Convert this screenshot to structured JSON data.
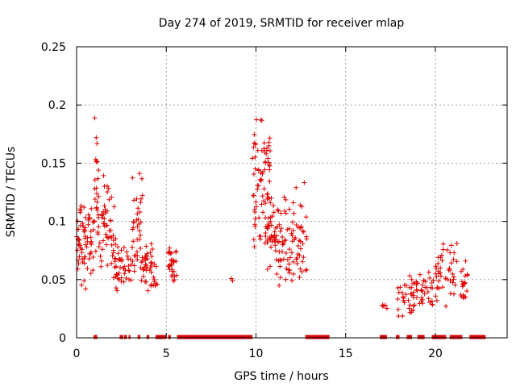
{
  "chart_data": {
    "type": "scatter",
    "title": "Day 274 of 2019, SRMTID for receiver mlap",
    "xlabel": "GPS time / hours",
    "ylabel": "SRMTID / TECUs",
    "xlim": [
      0,
      24
    ],
    "ylim": [
      0,
      0.25
    ],
    "x_ticks": [
      "0",
      "5",
      "10",
      "15",
      "20"
    ],
    "x_tick_values": [
      0,
      5,
      10,
      15,
      20
    ],
    "y_ticks": [
      "0",
      "0.05",
      "0.1",
      "0.15",
      "0.2",
      "0.25"
    ],
    "y_tick_values": [
      0,
      0.05,
      0.1,
      0.15,
      0.2,
      0.25
    ],
    "grid": true,
    "marker": "+",
    "color": "#e00000",
    "clusters": [
      {
        "x_range": [
          0.0,
          1.0
        ],
        "y_range": [
          0.035,
          0.12
        ],
        "count": 70
      },
      {
        "x_range": [
          1.0,
          2.1
        ],
        "y_range": [
          0.04,
          0.15
        ],
        "count": 60
      },
      {
        "x_range": [
          1.0,
          1.2
        ],
        "y_range": [
          0.1,
          0.205
        ],
        "count": 14
      },
      {
        "x_range": [
          2.1,
          3.1
        ],
        "y_range": [
          0.035,
          0.09
        ],
        "count": 45
      },
      {
        "x_range": [
          3.1,
          3.7
        ],
        "y_range": [
          0.04,
          0.15
        ],
        "count": 40
      },
      {
        "x_range": [
          3.7,
          4.5
        ],
        "y_range": [
          0.035,
          0.085
        ],
        "count": 40
      },
      {
        "x_range": [
          5.1,
          5.6
        ],
        "y_range": [
          0.045,
          0.08
        ],
        "count": 30
      },
      {
        "x_range": [
          8.6,
          8.8
        ],
        "y_range": [
          0.04,
          0.055
        ],
        "count": 2
      },
      {
        "x_range": [
          9.8,
          10.8
        ],
        "y_range": [
          0.07,
          0.195
        ],
        "count": 80
      },
      {
        "x_range": [
          10.6,
          11.6
        ],
        "y_range": [
          0.04,
          0.13
        ],
        "count": 60
      },
      {
        "x_range": [
          11.6,
          12.9
        ],
        "y_range": [
          0.035,
          0.14
        ],
        "count": 60
      },
      {
        "x_range": [
          17.0,
          17.3
        ],
        "y_range": [
          0.025,
          0.03
        ],
        "count": 5
      },
      {
        "x_range": [
          17.9,
          19.0
        ],
        "y_range": [
          0.015,
          0.055
        ],
        "count": 40
      },
      {
        "x_range": [
          19.0,
          19.9
        ],
        "y_range": [
          0.025,
          0.06
        ],
        "count": 30
      },
      {
        "x_range": [
          20.0,
          21.2
        ],
        "y_range": [
          0.02,
          0.09
        ],
        "count": 45
      },
      {
        "x_range": [
          21.4,
          21.8
        ],
        "y_range": [
          0.025,
          0.07
        ],
        "count": 20
      }
    ],
    "zero_segments": [
      [
        0.95,
        1.15
      ],
      [
        2.4,
        2.6
      ],
      [
        2.65,
        2.8
      ],
      [
        2.9,
        3.0
      ],
      [
        3.4,
        3.55
      ],
      [
        3.9,
        4.05
      ],
      [
        4.4,
        5.0
      ],
      [
        5.1,
        5.25
      ],
      [
        5.6,
        9.5
      ],
      [
        9.5,
        9.8
      ],
      [
        12.75,
        14.1
      ],
      [
        16.9,
        17.3
      ],
      [
        17.8,
        18.0
      ],
      [
        18.4,
        18.7
      ],
      [
        19.0,
        19.4
      ],
      [
        19.8,
        20.6
      ],
      [
        20.8,
        21.5
      ],
      [
        21.9,
        22.8
      ]
    ]
  }
}
